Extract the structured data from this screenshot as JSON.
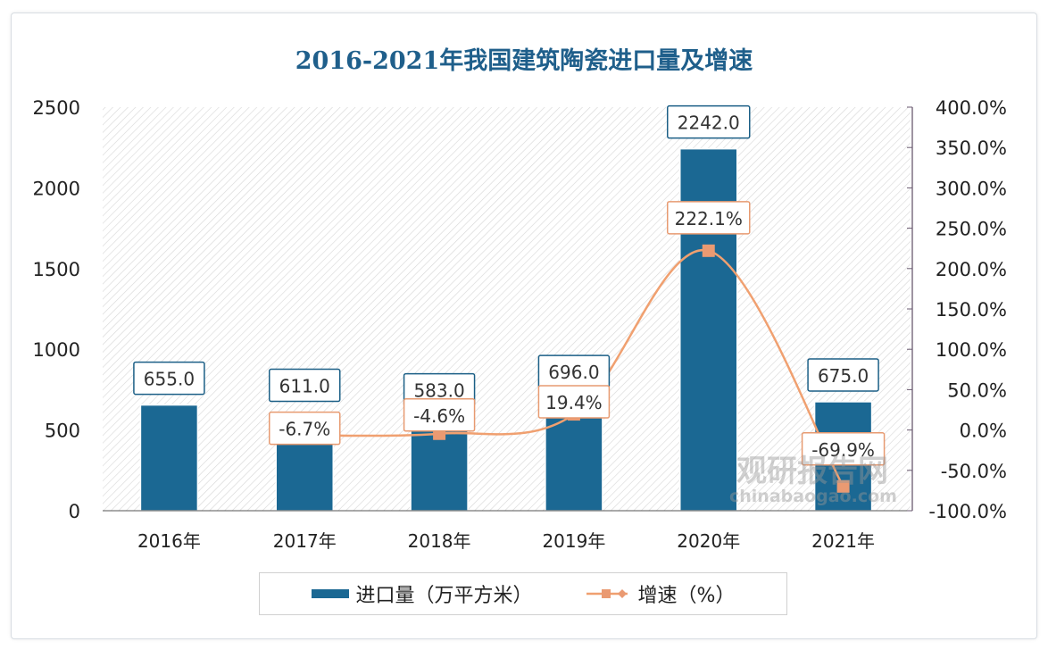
{
  "chart_data": {
    "type": "bar+line",
    "title": "2016-2021年我国建筑陶瓷进口量及增速",
    "categories": [
      "2016年",
      "2017年",
      "2018年",
      "2019年",
      "2020年",
      "2021年"
    ],
    "series": [
      {
        "name": "进口量（万平方米）",
        "type": "bar",
        "axis": "left",
        "values": [
          655.0,
          611.0,
          583.0,
          696.0,
          2242.0,
          675.0
        ],
        "labels": [
          "655.0",
          "611.0",
          "583.0",
          "696.0",
          "2242.0",
          "675.0"
        ],
        "color": "#1b6893"
      },
      {
        "name": "增速（%）",
        "type": "line",
        "axis": "right",
        "values": [
          null,
          -6.7,
          -4.6,
          19.4,
          222.1,
          -69.9
        ],
        "labels": [
          "",
          "-6.7%",
          "-4.6%",
          "19.4%",
          "222.1%",
          "-69.9%"
        ],
        "color": "#f0a070"
      }
    ],
    "left_axis": {
      "ylim": [
        0,
        2500
      ],
      "ticks": [
        "0",
        "500",
        "1000",
        "1500",
        "2000",
        "2500"
      ]
    },
    "right_axis": {
      "ylim": [
        -100,
        400
      ],
      "ticks": [
        "-100.0%",
        "-50.0%",
        "0.0%",
        "50.0%",
        "100.0%",
        "150.0%",
        "200.0%",
        "250.0%",
        "300.0%",
        "350.0%",
        "400.0%"
      ]
    },
    "grid": false,
    "legend": "bottom"
  },
  "watermark": {
    "cn": "观研报告网",
    "en": "chinabaogao.com"
  }
}
